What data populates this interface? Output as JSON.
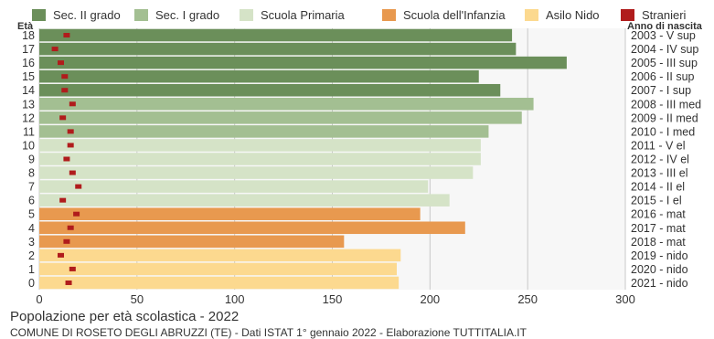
{
  "chart_data": {
    "type": "bar",
    "orientation": "horizontal",
    "title": "Popolazione per età scolastica - 2022",
    "subtitle": "COMUNE DI ROSETO DEGLI ABRUZZI (TE) - Dati ISTAT 1° gennaio 2022 - Elaborazione TUTTITALIA.IT",
    "y_axis_title": "Età",
    "right_axis_title": "Anno di nascita",
    "xlim": [
      0,
      300
    ],
    "x_ticks": [
      0,
      50,
      100,
      150,
      200,
      250,
      300
    ],
    "grid": true,
    "legend_position": "top",
    "legend": [
      {
        "label": "Sec. II grado",
        "color": "#6b8f5a"
      },
      {
        "label": "Sec. I grado",
        "color": "#a3bf92"
      },
      {
        "label": "Scuola Primaria",
        "color": "#d5e3c7"
      },
      {
        "label": "Scuola dell'Infanzia",
        "color": "#e8994f"
      },
      {
        "label": "Asilo Nido",
        "color": "#fcd98f"
      },
      {
        "label": "Stranieri",
        "color": "#b01c1c"
      }
    ],
    "rows": [
      {
        "age": "18",
        "birth": "2003 - V sup",
        "group": 0,
        "value": 242,
        "stranieri": 14
      },
      {
        "age": "17",
        "birth": "2004 - IV sup",
        "group": 0,
        "value": 244,
        "stranieri": 8
      },
      {
        "age": "16",
        "birth": "2005 - III sup",
        "group": 0,
        "value": 270,
        "stranieri": 11
      },
      {
        "age": "15",
        "birth": "2006 - II sup",
        "group": 0,
        "value": 225,
        "stranieri": 13
      },
      {
        "age": "14",
        "birth": "2007 - I sup",
        "group": 0,
        "value": 236,
        "stranieri": 13
      },
      {
        "age": "13",
        "birth": "2008 - III med",
        "group": 1,
        "value": 253,
        "stranieri": 17
      },
      {
        "age": "12",
        "birth": "2009 - II med",
        "group": 1,
        "value": 247,
        "stranieri": 12
      },
      {
        "age": "11",
        "birth": "2010 - I med",
        "group": 1,
        "value": 230,
        "stranieri": 16
      },
      {
        "age": "10",
        "birth": "2011 - V el",
        "group": 2,
        "value": 226,
        "stranieri": 16
      },
      {
        "age": "9",
        "birth": "2012 - IV el",
        "group": 2,
        "value": 226,
        "stranieri": 14
      },
      {
        "age": "8",
        "birth": "2013 - III el",
        "group": 2,
        "value": 222,
        "stranieri": 17
      },
      {
        "age": "7",
        "birth": "2014 - II el",
        "group": 2,
        "value": 199,
        "stranieri": 20
      },
      {
        "age": "6",
        "birth": "2015 - I el",
        "group": 2,
        "value": 210,
        "stranieri": 12
      },
      {
        "age": "5",
        "birth": "2016 - mat",
        "group": 3,
        "value": 195,
        "stranieri": 19
      },
      {
        "age": "4",
        "birth": "2017 - mat",
        "group": 3,
        "value": 218,
        "stranieri": 16
      },
      {
        "age": "3",
        "birth": "2018 - mat",
        "group": 3,
        "value": 156,
        "stranieri": 14
      },
      {
        "age": "2",
        "birth": "2019 - nido",
        "group": 4,
        "value": 185,
        "stranieri": 11
      },
      {
        "age": "1",
        "birth": "2020 - nido",
        "group": 4,
        "value": 183,
        "stranieri": 17
      },
      {
        "age": "0",
        "birth": "2021 - nido",
        "group": 4,
        "value": 184,
        "stranieri": 15
      }
    ]
  }
}
